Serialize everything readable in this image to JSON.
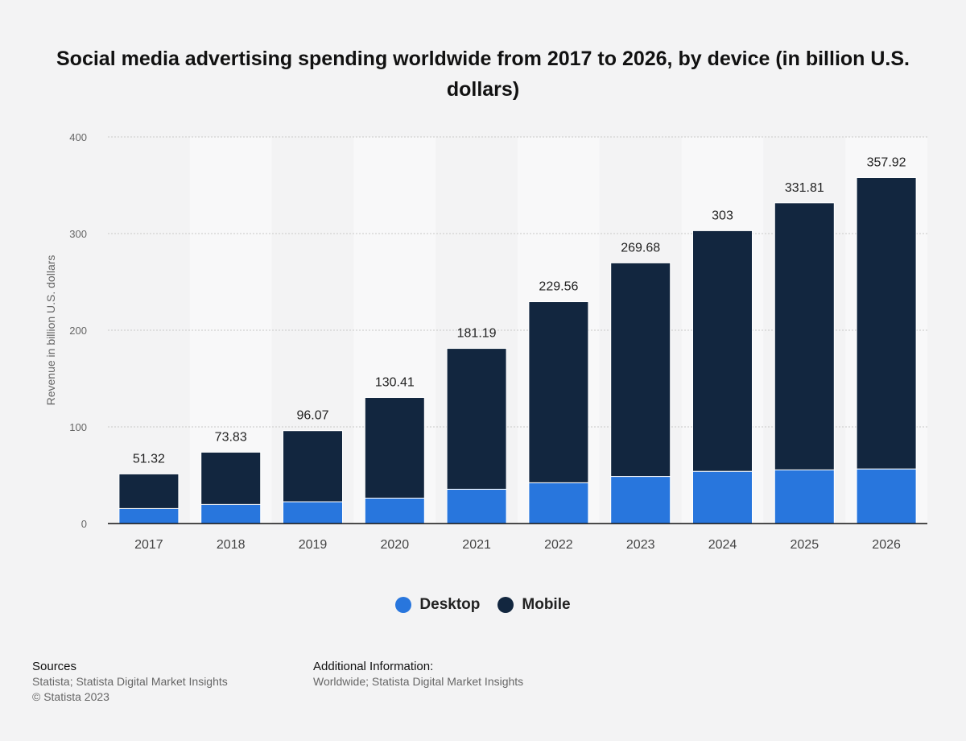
{
  "title": "Social media advertising spending worldwide from 2017 to 2026, by device (in billion U.S. dollars)",
  "chart_data": {
    "type": "bar",
    "stacked": true,
    "categories": [
      "2017",
      "2018",
      "2019",
      "2020",
      "2021",
      "2022",
      "2023",
      "2024",
      "2025",
      "2026"
    ],
    "series": [
      {
        "name": "Desktop",
        "color": "#2876dd",
        "values": [
          15.5,
          19.7,
          22.5,
          26.3,
          35.5,
          42.2,
          48.7,
          54.0,
          55.5,
          56.5
        ]
      },
      {
        "name": "Mobile",
        "color": "#12263f",
        "values": [
          35.82,
          54.13,
          73.57,
          104.11,
          145.69,
          187.36,
          220.98,
          249.0,
          276.31,
          301.42
        ]
      }
    ],
    "totals": [
      "51.32",
      "73.83",
      "96.07",
      "130.41",
      "181.19",
      "229.56",
      "269.68",
      "303",
      "331.81",
      "357.92"
    ],
    "ylabel": "Revenue in billion U.S. dollars",
    "xlabel": "",
    "ylim": [
      0,
      400
    ],
    "yticks": [
      0,
      100,
      200,
      300,
      400
    ],
    "grid": true,
    "legend_position": "bottom-center"
  },
  "sources": {
    "heading": "Sources",
    "line1": "Statista; Statista Digital Market Insights",
    "line2": "© Statista 2023"
  },
  "additional_info": {
    "heading": "Additional Information:",
    "line1": "Worldwide; Statista Digital Market Insights"
  }
}
